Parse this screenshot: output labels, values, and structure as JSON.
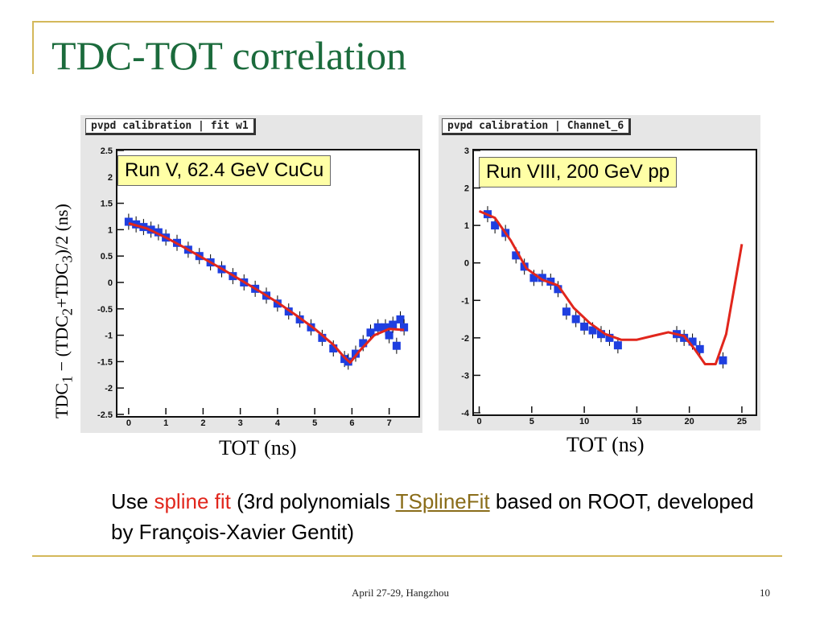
{
  "slide": {
    "title": "TDC-TOT correlation",
    "y_axis_label": {
      "pre": "TDC",
      "s1": "1",
      "mid1": " − (TDC",
      "s2": "2",
      "mid2": "+TDC",
      "s3": "3",
      "post": ")/2  (ns)"
    },
    "caption": {
      "part1": "Use ",
      "part2": "spline fit",
      "part3": " (3rd polynomials ",
      "part4": "TSplineFit",
      "part5": " based on ROOT, developed by François-Xavier Gentit)"
    },
    "footer_text": "April 27-29, Hangzhou",
    "page_number": "10",
    "colors": {
      "title": "#1b6b3c",
      "accent_line": "#d4b85a",
      "data_marker": "#1f3fe0",
      "fit_line": "#e1261c",
      "label_box": "#ffffa6"
    }
  },
  "chart_data": [
    {
      "type": "scatter",
      "panel_title": "pvpd calibration | fit w1",
      "run_label": "Run V, 62.4 GeV CuCu",
      "xlabel": "TOT (ns)",
      "ylabel": "TDC1 − (TDC2+TDC3)/2  (ns)",
      "xlim": [
        -0.3,
        7.7
      ],
      "ylim": [
        -2.5,
        2.5
      ],
      "x_ticks": [
        0,
        1,
        2,
        3,
        4,
        5,
        6,
        7
      ],
      "y_ticks": [
        2.5,
        2,
        1.5,
        1,
        0.5,
        0,
        -0.5,
        -1,
        -1.5,
        -2,
        -2.5
      ],
      "series": [
        {
          "kind": "points",
          "x": [
            0.0,
            0.2,
            0.4,
            0.6,
            0.8,
            1.0,
            1.3,
            1.6,
            1.9,
            2.2,
            2.5,
            2.8,
            3.1,
            3.4,
            3.7,
            4.0,
            4.3,
            4.6,
            4.9,
            5.2,
            5.5,
            5.8,
            5.9,
            6.1,
            6.3,
            6.5,
            6.7,
            6.9,
            7.0,
            7.1,
            7.2,
            7.3,
            7.4
          ],
          "y": [
            1.15,
            1.1,
            1.05,
            1.0,
            0.95,
            0.85,
            0.75,
            0.62,
            0.5,
            0.38,
            0.25,
            0.12,
            0.0,
            -0.12,
            -0.25,
            -0.4,
            -0.55,
            -0.7,
            -0.85,
            -1.05,
            -1.25,
            -1.45,
            -1.5,
            -1.35,
            -1.15,
            -0.95,
            -0.85,
            -0.85,
            -1.0,
            -0.8,
            -1.2,
            -0.7,
            -0.85
          ]
        },
        {
          "kind": "fit",
          "x": [
            0.0,
            0.5,
            1.0,
            1.5,
            2.0,
            2.5,
            3.0,
            3.5,
            4.0,
            4.5,
            5.0,
            5.5,
            5.8,
            5.95,
            6.2,
            6.6,
            7.0,
            7.4
          ],
          "y": [
            1.12,
            1.02,
            0.85,
            0.66,
            0.46,
            0.26,
            0.05,
            -0.16,
            -0.38,
            -0.62,
            -0.88,
            -1.18,
            -1.42,
            -1.52,
            -1.3,
            -1.0,
            -0.88,
            -0.9
          ]
        }
      ]
    },
    {
      "type": "scatter",
      "panel_title": "pvpd calibration | Channel_6",
      "run_label": "Run VIII, 200 GeV pp",
      "xlabel": "TOT (ns)",
      "ylim": [
        -4,
        3
      ],
      "xlim": [
        -0.5,
        26
      ],
      "x_ticks": [
        0,
        5,
        10,
        15,
        20,
        25
      ],
      "y_ticks": [
        3,
        2,
        1,
        0,
        -1,
        -2,
        -3,
        -4
      ],
      "series": [
        {
          "kind": "points",
          "x": [
            0.8,
            1.5,
            2.5,
            3.5,
            4.3,
            5.2,
            6.0,
            6.8,
            7.5,
            8.3,
            9.2,
            10.0,
            10.8,
            11.6,
            12.4,
            13.2,
            18.8,
            19.5,
            20.3,
            21.0,
            23.2
          ],
          "y": [
            1.3,
            1.0,
            0.8,
            0.2,
            -0.1,
            -0.4,
            -0.4,
            -0.5,
            -0.7,
            -1.3,
            -1.5,
            -1.7,
            -1.8,
            -1.9,
            -2.0,
            -2.2,
            -1.9,
            -2.0,
            -2.1,
            -2.3,
            -2.6
          ]
        },
        {
          "kind": "fit",
          "x": [
            0.0,
            1.5,
            3.0,
            4.5,
            6.0,
            7.5,
            9.0,
            10.5,
            12.0,
            13.5,
            15.0,
            16.5,
            18.0,
            19.5,
            20.5,
            21.5,
            22.5,
            23.5,
            24.5,
            25.0
          ],
          "y": [
            1.38,
            1.2,
            0.6,
            -0.15,
            -0.45,
            -0.6,
            -1.2,
            -1.6,
            -1.9,
            -2.05,
            -2.05,
            -1.95,
            -1.85,
            -1.95,
            -2.3,
            -2.7,
            -2.7,
            -1.9,
            -0.3,
            0.5
          ]
        }
      ]
    }
  ]
}
